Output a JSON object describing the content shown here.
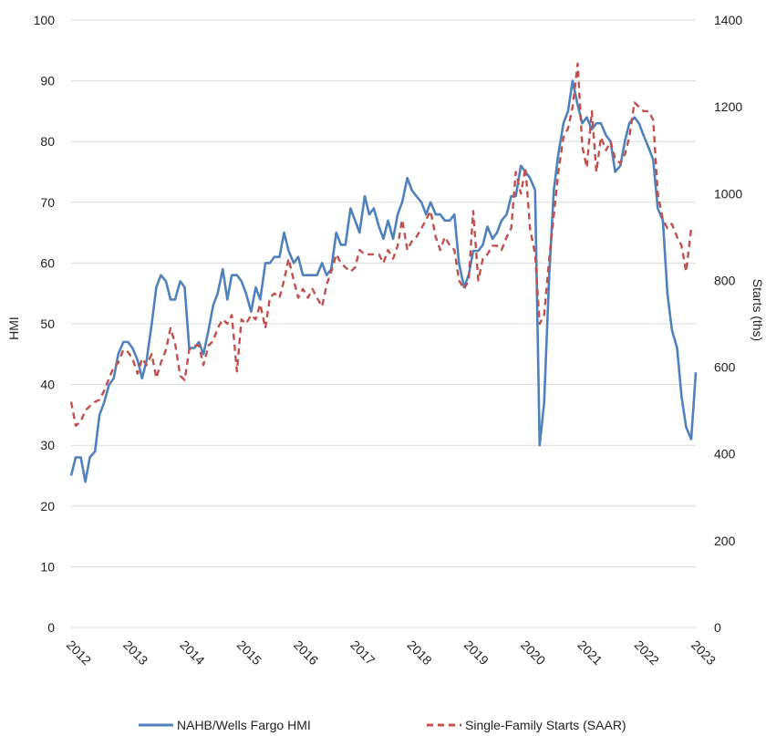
{
  "chart_data": {
    "type": "line",
    "title": "",
    "y_left_label": "HMI",
    "y_right_label": "Starts (ths)",
    "y_left_range": [
      0,
      100
    ],
    "y_left_ticks": [
      "0",
      "10",
      "20",
      "30",
      "40",
      "50",
      "60",
      "70",
      "80",
      "90",
      "100"
    ],
    "y_right_range": [
      0,
      1400
    ],
    "y_right_ticks": [
      "0",
      "200",
      "400",
      "600",
      "800",
      "1000",
      "1200",
      "1400"
    ],
    "x_range": [
      2012,
      2023
    ],
    "x_tick_labels": [
      "2012",
      "2013",
      "2014",
      "2015",
      "2016",
      "2017",
      "2018",
      "2019",
      "2020",
      "2021",
      "2022",
      "2023"
    ],
    "grid": true,
    "legend_position": "bottom",
    "series": [
      {
        "name": "NAHB/Wells Fargo HMI",
        "axis": "left",
        "color": "#4f81bd",
        "style": "solid",
        "x": [
          2012.0,
          2012.08,
          2012.17,
          2012.25,
          2012.33,
          2012.42,
          2012.5,
          2012.58,
          2012.67,
          2012.75,
          2012.83,
          2012.92,
          2013.0,
          2013.08,
          2013.17,
          2013.25,
          2013.33,
          2013.42,
          2013.5,
          2013.58,
          2013.67,
          2013.75,
          2013.83,
          2013.92,
          2014.0,
          2014.08,
          2014.17,
          2014.25,
          2014.33,
          2014.42,
          2014.5,
          2014.58,
          2014.67,
          2014.75,
          2014.83,
          2014.92,
          2015.0,
          2015.08,
          2015.17,
          2015.25,
          2015.33,
          2015.42,
          2015.5,
          2015.58,
          2015.67,
          2015.75,
          2015.83,
          2015.92,
          2016.0,
          2016.08,
          2016.17,
          2016.25,
          2016.33,
          2016.42,
          2016.5,
          2016.58,
          2016.67,
          2016.75,
          2016.83,
          2016.92,
          2017.0,
          2017.08,
          2017.17,
          2017.25,
          2017.33,
          2017.42,
          2017.5,
          2017.58,
          2017.67,
          2017.75,
          2017.83,
          2017.92,
          2018.0,
          2018.08,
          2018.17,
          2018.25,
          2018.33,
          2018.42,
          2018.5,
          2018.58,
          2018.67,
          2018.75,
          2018.83,
          2018.92,
          2019.0,
          2019.08,
          2019.17,
          2019.25,
          2019.33,
          2019.42,
          2019.5,
          2019.58,
          2019.67,
          2019.75,
          2019.83,
          2019.92,
          2020.0,
          2020.08,
          2020.17,
          2020.25,
          2020.33,
          2020.42,
          2020.5,
          2020.58,
          2020.67,
          2020.75,
          2020.83,
          2020.92,
          2021.0,
          2021.08,
          2021.17,
          2021.25,
          2021.33,
          2021.42,
          2021.5,
          2021.58,
          2021.67,
          2021.75,
          2021.83,
          2021.92,
          2022.0,
          2022.08,
          2022.17,
          2022.25,
          2022.33,
          2022.42,
          2022.5,
          2022.58,
          2022.67,
          2022.75,
          2022.83,
          2022.92,
          2023.0
        ],
        "values": [
          25,
          28,
          28,
          24,
          28,
          29,
          35,
          37,
          40,
          41,
          45,
          47,
          47,
          46,
          44,
          41,
          44,
          50,
          56,
          58,
          57,
          54,
          54,
          57,
          56,
          46,
          46,
          47,
          45,
          49,
          53,
          55,
          59,
          54,
          58,
          58,
          57,
          55,
          52,
          56,
          54,
          60,
          60,
          61,
          61,
          65,
          62,
          60,
          61,
          58,
          58,
          58,
          58,
          60,
          58,
          59,
          65,
          63,
          63,
          69,
          67,
          65,
          71,
          68,
          69,
          66,
          64,
          67,
          64,
          68,
          70,
          74,
          72,
          71,
          70,
          68,
          70,
          68,
          68,
          67,
          67,
          68,
          60,
          56,
          58,
          62,
          62,
          63,
          66,
          64,
          65,
          67,
          68,
          71,
          71,
          76,
          75,
          74,
          72,
          30,
          37,
          58,
          72,
          78,
          83,
          85,
          90,
          86,
          83,
          84,
          82,
          83,
          83,
          81,
          80,
          75,
          76,
          80,
          83,
          84,
          83,
          81,
          79,
          77,
          69,
          67,
          55,
          49,
          46,
          38,
          33,
          31,
          42
        ]
      },
      {
        "name": "Single-Family Starts (SAAR)",
        "axis": "right",
        "color": "#c0504d",
        "style": "dashed",
        "x": [
          2012.0,
          2012.08,
          2012.17,
          2012.25,
          2012.33,
          2012.42,
          2012.5,
          2012.58,
          2012.67,
          2012.75,
          2012.83,
          2012.92,
          2013.0,
          2013.08,
          2013.17,
          2013.25,
          2013.33,
          2013.42,
          2013.5,
          2013.58,
          2013.67,
          2013.75,
          2013.83,
          2013.92,
          2014.0,
          2014.08,
          2014.17,
          2014.25,
          2014.33,
          2014.42,
          2014.5,
          2014.58,
          2014.67,
          2014.75,
          2014.83,
          2014.92,
          2015.0,
          2015.08,
          2015.17,
          2015.25,
          2015.33,
          2015.42,
          2015.5,
          2015.58,
          2015.67,
          2015.75,
          2015.83,
          2015.92,
          2016.0,
          2016.08,
          2016.17,
          2016.25,
          2016.33,
          2016.42,
          2016.5,
          2016.58,
          2016.67,
          2016.75,
          2016.83,
          2016.92,
          2017.0,
          2017.08,
          2017.17,
          2017.25,
          2017.33,
          2017.42,
          2017.5,
          2017.58,
          2017.67,
          2017.75,
          2017.83,
          2017.92,
          2018.0,
          2018.08,
          2018.17,
          2018.25,
          2018.33,
          2018.42,
          2018.5,
          2018.58,
          2018.67,
          2018.75,
          2018.83,
          2018.92,
          2019.0,
          2019.08,
          2019.17,
          2019.25,
          2019.33,
          2019.42,
          2019.5,
          2019.58,
          2019.67,
          2019.75,
          2019.83,
          2019.92,
          2020.0,
          2020.08,
          2020.17,
          2020.25,
          2020.33,
          2020.42,
          2020.5,
          2020.58,
          2020.67,
          2020.75,
          2020.83,
          2020.92,
          2021.0,
          2021.08,
          2021.17,
          2021.25,
          2021.33,
          2021.42,
          2021.5,
          2021.58,
          2021.67,
          2021.75,
          2021.83,
          2021.92,
          2022.0,
          2022.08,
          2022.17,
          2022.25,
          2022.33,
          2022.42,
          2022.5,
          2022.58,
          2022.67,
          2022.75,
          2022.83,
          2022.92
        ],
        "values": [
          520,
          465,
          475,
          500,
          510,
          520,
          525,
          545,
          575,
          600,
          610,
          640,
          635,
          620,
          585,
          620,
          605,
          630,
          575,
          610,
          640,
          690,
          655,
          580,
          570,
          640,
          650,
          650,
          605,
          650,
          660,
          690,
          710,
          700,
          720,
          590,
          710,
          700,
          720,
          710,
          745,
          690,
          760,
          770,
          760,
          800,
          850,
          800,
          760,
          780,
          760,
          780,
          760,
          740,
          790,
          820,
          860,
          840,
          830,
          820,
          830,
          870,
          860,
          860,
          860,
          860,
          840,
          870,
          850,
          880,
          940,
          870,
          890,
          900,
          920,
          940,
          960,
          900,
          870,
          900,
          880,
          870,
          800,
          780,
          800,
          960,
          800,
          850,
          860,
          880,
          880,
          870,
          900,
          920,
          1050,
          1000,
          1060,
          920,
          860,
          700,
          720,
          850,
          950,
          1050,
          1130,
          1150,
          1200,
          1300,
          1110,
          1060,
          1190,
          1050,
          1130,
          1100,
          1120,
          1080,
          1070,
          1090,
          1130,
          1210,
          1200,
          1190,
          1190,
          1170,
          1000,
          940,
          920,
          930,
          900,
          880,
          820,
          920
        ]
      }
    ]
  }
}
